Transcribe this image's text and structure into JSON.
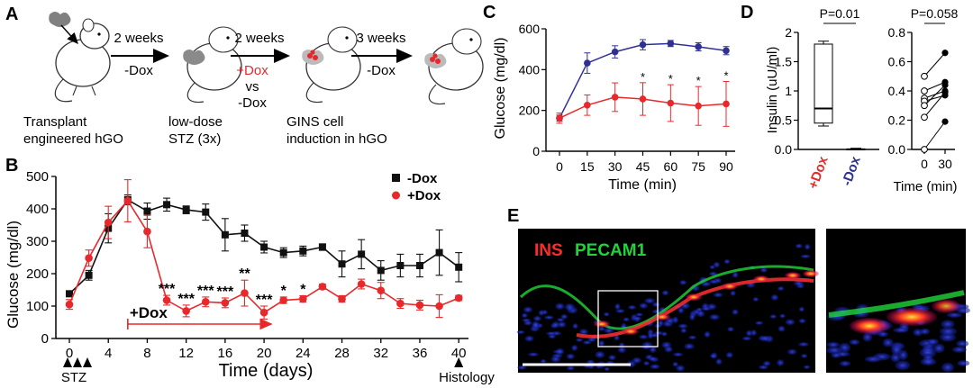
{
  "panels": {
    "a": "A",
    "b": "B",
    "c": "C",
    "d": "D",
    "e": "E"
  },
  "panel_a": {
    "steps": [
      {
        "caption_lines": [
          "Transplant",
          "engineered hGO"
        ]
      },
      {
        "caption_lines": [
          "low-dose",
          "STZ (3x)"
        ]
      },
      {
        "caption_lines": [
          "GINS cell",
          "induction in hGO"
        ]
      }
    ],
    "arrows": [
      {
        "top": "2 weeks",
        "bottom": "-Dox"
      },
      {
        "top": "2 weeks",
        "plus": "+Dox",
        "vs": "vs",
        "minus": "-Dox"
      },
      {
        "top": "3 weeks",
        "bottom": "-Dox"
      }
    ]
  },
  "colors": {
    "black": "#111111",
    "red": "#e8292c",
    "blue": "#2e3192",
    "green": "#1fd43a"
  },
  "chart_data": [
    {
      "id": "B",
      "type": "line",
      "xlabel": "Time (days)",
      "ylabel": "Glucose (mg/dl)",
      "xlim": [
        0,
        41
      ],
      "ylim": [
        0,
        500
      ],
      "xticks": [
        0,
        4,
        8,
        12,
        16,
        20,
        24,
        28,
        32,
        36,
        40
      ],
      "yticks": [
        0,
        100,
        200,
        300,
        400,
        500
      ],
      "legend": [
        "-Dox",
        "+Dox"
      ],
      "legend_position": "top-right",
      "series": [
        {
          "name": "-Dox",
          "x": [
            0,
            2,
            4,
            6,
            8,
            10,
            12,
            14,
            16,
            18,
            20,
            22,
            24,
            26,
            28,
            30,
            32,
            34,
            36,
            38,
            40
          ],
          "values": [
            138,
            195,
            340,
            428,
            393,
            413,
            397,
            390,
            320,
            325,
            282,
            265,
            270,
            282,
            230,
            260,
            210,
            225,
            225,
            265,
            220
          ],
          "errors": [
            8,
            15,
            45,
            15,
            25,
            20,
            12,
            25,
            50,
            25,
            18,
            15,
            15,
            10,
            40,
            45,
            30,
            35,
            35,
            70,
            45
          ]
        },
        {
          "name": "+Dox",
          "x": [
            0,
            2,
            4,
            6,
            8,
            10,
            12,
            14,
            16,
            18,
            20,
            22,
            24,
            26,
            28,
            30,
            32,
            34,
            36,
            38,
            40
          ],
          "values": [
            105,
            248,
            358,
            425,
            330,
            118,
            85,
            113,
            110,
            140,
            80,
            118,
            122,
            160,
            122,
            168,
            148,
            108,
            103,
            100,
            125
          ],
          "errors": [
            15,
            25,
            50,
            65,
            50,
            15,
            18,
            15,
            15,
            40,
            20,
            10,
            10,
            8,
            10,
            15,
            25,
            15,
            15,
            35,
            8
          ]
        }
      ],
      "significance": [
        {
          "x": 10,
          "label": "***"
        },
        {
          "x": 12,
          "label": "***"
        },
        {
          "x": 14,
          "label": "***"
        },
        {
          "x": 16,
          "label": "***"
        },
        {
          "x": 18,
          "label": "**"
        },
        {
          "x": 20,
          "label": "***"
        },
        {
          "x": 22,
          "label": "*"
        },
        {
          "x": 24,
          "label": "*"
        }
      ],
      "dox_bracket": {
        "label": "+Dox",
        "from": 6,
        "to": 20
      },
      "stz_label": "STZ",
      "histology_label": "Histology"
    },
    {
      "id": "C",
      "type": "line",
      "xlabel": "Time (min)",
      "ylabel": "Glucose (mg/dl)",
      "xticks": [
        0,
        15,
        30,
        45,
        60,
        75,
        90
      ],
      "yticks": [
        0,
        200,
        400,
        600
      ],
      "ylim": [
        0,
        600
      ],
      "series": [
        {
          "name": "-Dox",
          "x": [
            0,
            15,
            30,
            45,
            60,
            75,
            90
          ],
          "values": [
            162,
            432,
            487,
            522,
            528,
            512,
            493
          ],
          "errors": [
            15,
            50,
            30,
            25,
            15,
            20,
            20
          ]
        },
        {
          "name": "+Dox",
          "x": [
            0,
            15,
            30,
            45,
            60,
            75,
            90
          ],
          "values": [
            162,
            226,
            265,
            256,
            236,
            222,
            232
          ],
          "errors": [
            25,
            50,
            70,
            80,
            90,
            95,
            110
          ]
        }
      ],
      "significance": [
        {
          "x": 45,
          "label": "*"
        },
        {
          "x": 60,
          "label": "*"
        },
        {
          "x": 75,
          "label": "*"
        },
        {
          "x": 90,
          "label": "*"
        }
      ]
    },
    {
      "id": "D-left",
      "type": "box",
      "ylabel": "Insulin (uU/ml)",
      "ylim": [
        0,
        2
      ],
      "yticks": [
        "0.0",
        "0.5",
        "1",
        "1.5",
        "2"
      ],
      "categories": [
        "+Dox",
        "-Dox"
      ],
      "p_label": "P=0.01",
      "boxes": [
        {
          "name": "+Dox",
          "min": 0.4,
          "q1": 0.45,
          "median": 0.7,
          "q3": 1.8,
          "max": 1.85
        },
        {
          "name": "-Dox",
          "min": 0.0,
          "q1": 0.0,
          "median": 0.0,
          "q3": 0.01,
          "max": 0.02
        }
      ]
    },
    {
      "id": "D-right",
      "type": "paired-scatter",
      "xlabel": "Time (min)",
      "xticks": [
        "0",
        "30"
      ],
      "ylim": [
        0,
        0.8
      ],
      "yticks": [
        "0.0",
        "0.2",
        "0.4",
        "0.6",
        "0.8"
      ],
      "p_label": "P=0.058",
      "pairs": [
        [
          0.5,
          0.66
        ],
        [
          0.4,
          0.46
        ],
        [
          0.35,
          0.4
        ],
        [
          0.33,
          0.37
        ],
        [
          0.3,
          0.44
        ],
        [
          0.22,
          0.39
        ],
        [
          0.0,
          0.19
        ]
      ]
    }
  ],
  "panel_e": {
    "label_ins": "INS",
    "label_pecam": "PECAM1"
  }
}
